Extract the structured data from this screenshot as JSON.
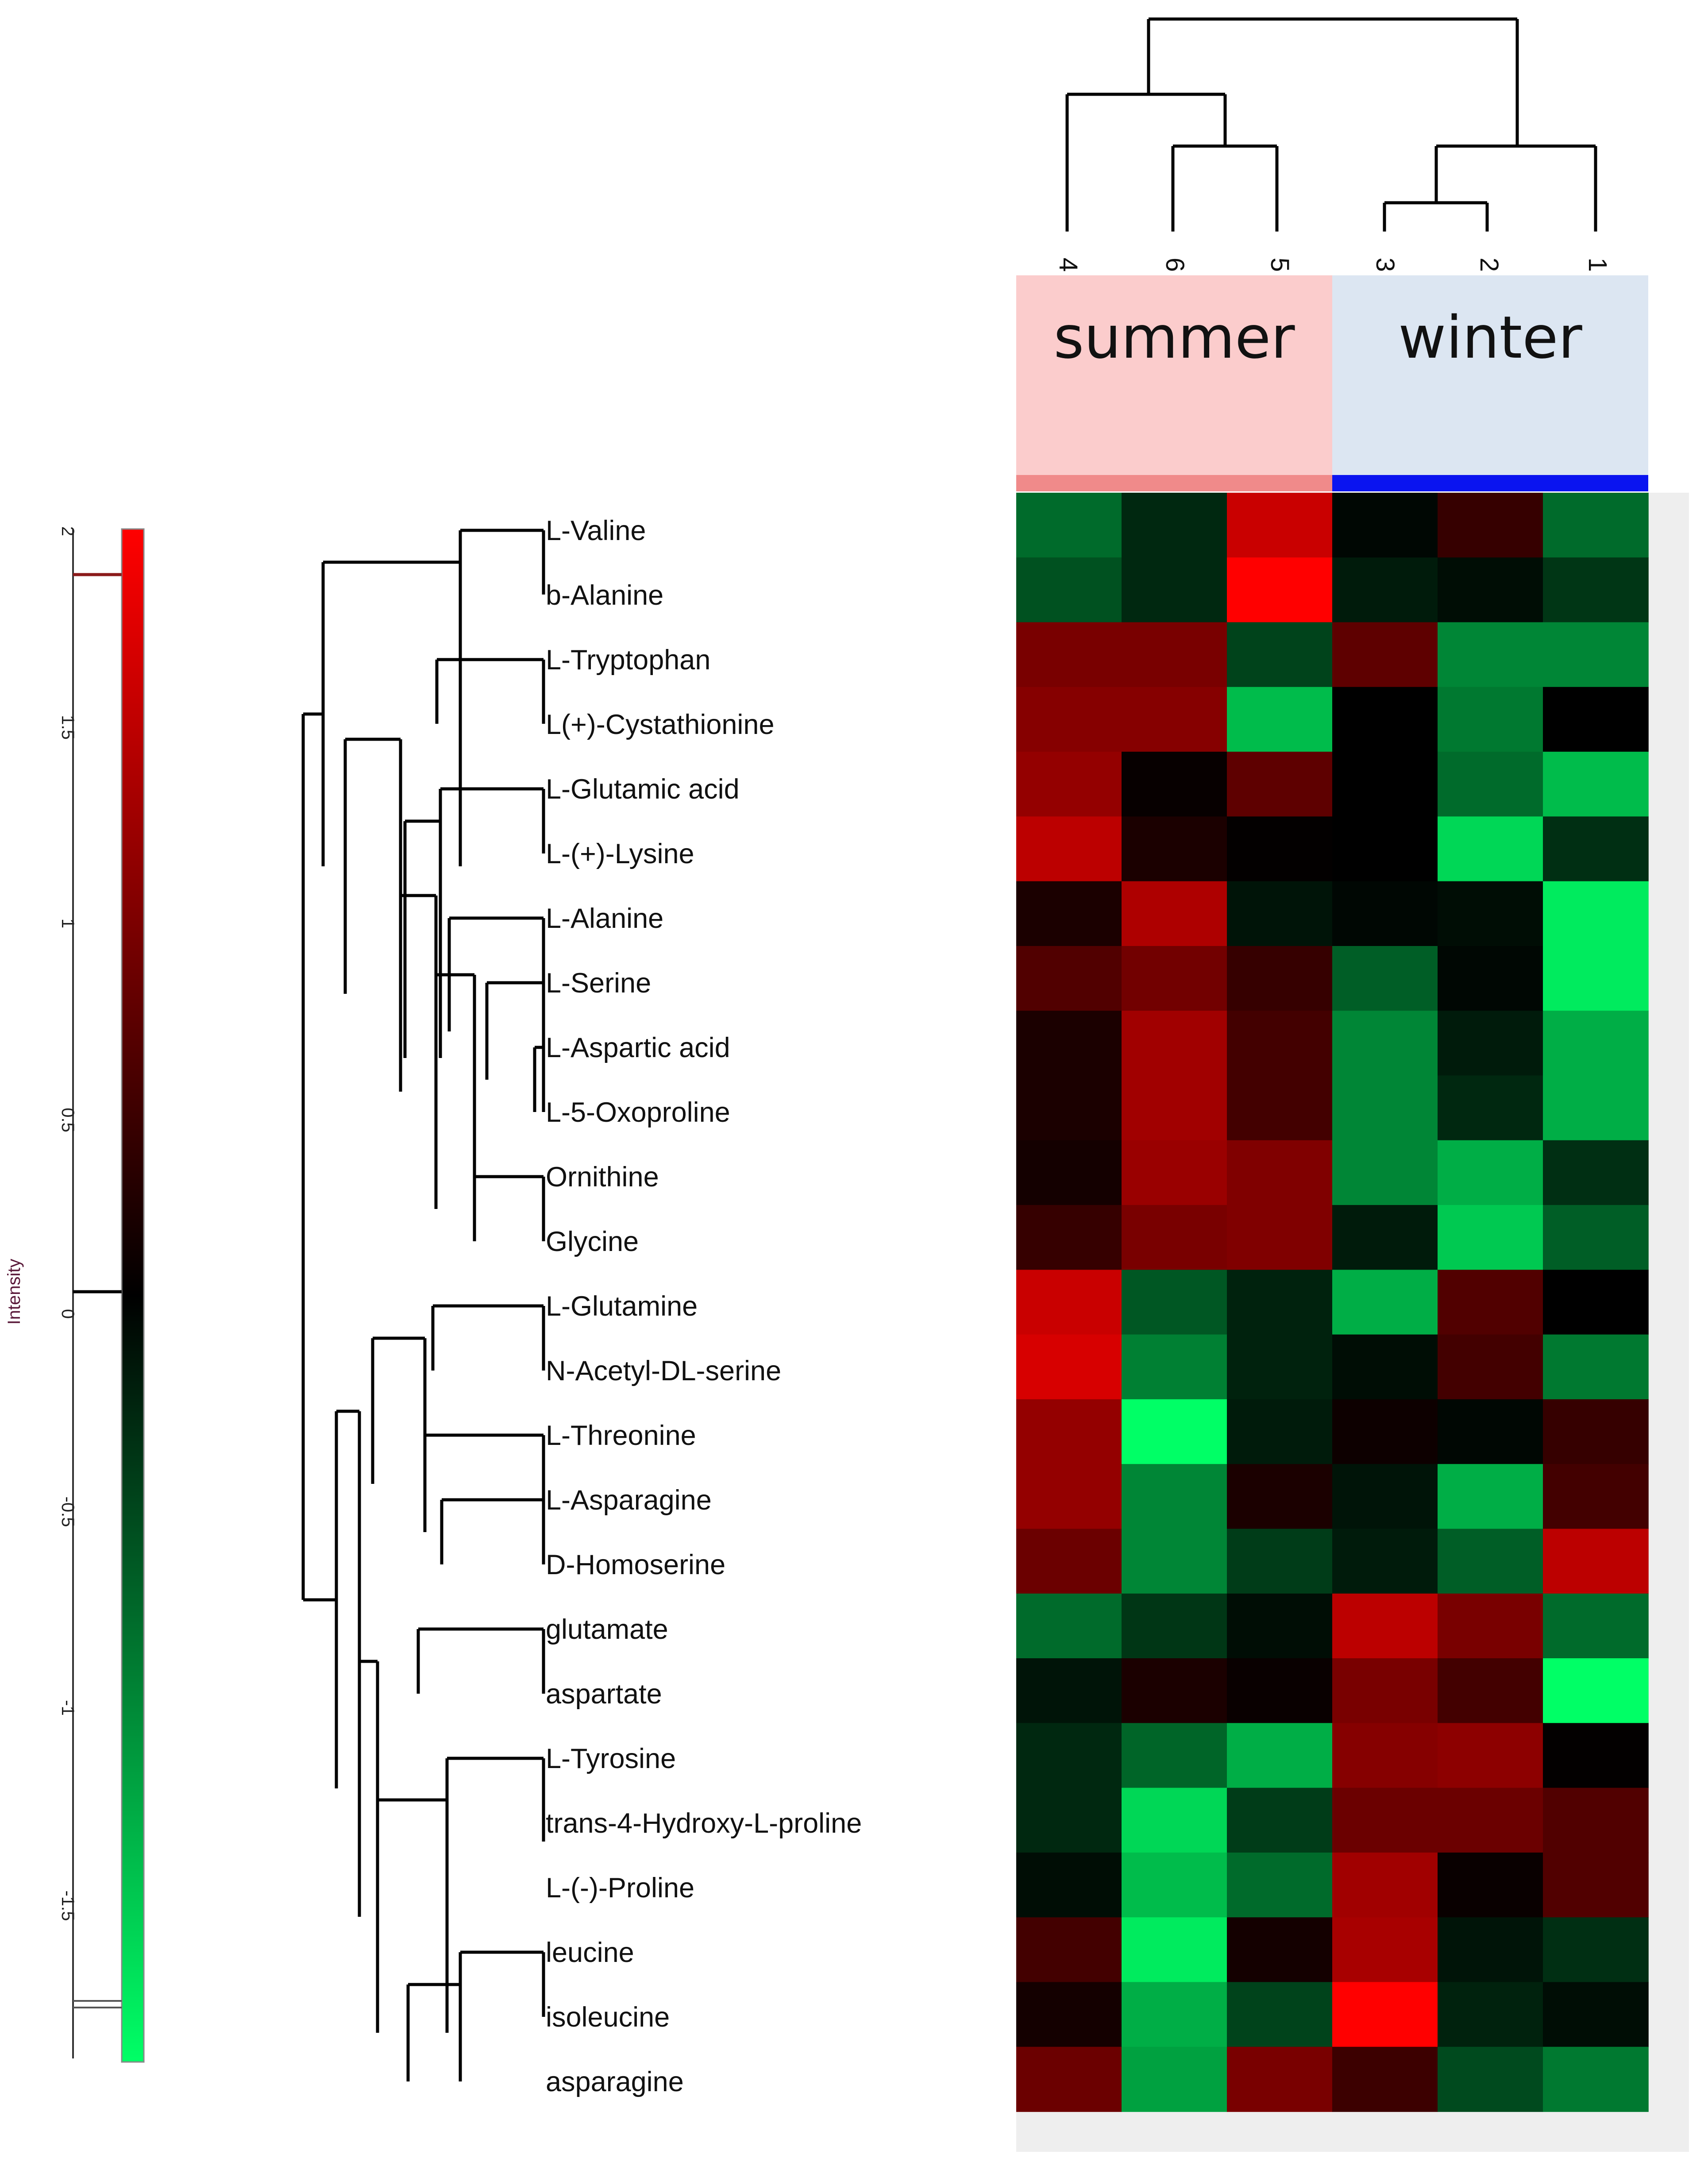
{
  "chart_data": {
    "type": "heatmap",
    "title": "",
    "rows": [
      "L-Valine",
      "b-Alanine",
      "L-Tryptophan",
      "L(+)-Cystathionine",
      "L-Glutamic acid",
      "L-(+)-Lysine",
      "L-Alanine",
      "L-Serine",
      "L-Aspartic acid",
      "L-5-Oxoproline",
      "Ornithine",
      "Glycine",
      "L-Glutamine",
      "N-Acetyl-DL-serine",
      "L-Threonine",
      "L-Asparagine",
      "D-Homoserine",
      "glutamate",
      "aspartate",
      "L-Tyrosine",
      "trans-4-Hydroxy-L-proline",
      "L-(-)-Proline",
      "leucine",
      "isoleucine",
      "asparagine"
    ],
    "columns": [
      "4",
      "6",
      "5",
      "3",
      "2",
      "1"
    ],
    "groups": [
      {
        "name": "summer",
        "columns": [
          "4",
          "6",
          "5"
        ],
        "color": "#fbcccc",
        "bar_color": "#f08a8a"
      },
      {
        "name": "winter",
        "columns": [
          "3",
          "2",
          "1"
        ],
        "color": "#dce6f2",
        "bar_color": "#0a14f0"
      }
    ],
    "values": [
      [
        -0.8,
        -0.3,
        1.5,
        -0.05,
        0.4,
        -0.8
      ],
      [
        -0.6,
        -0.3,
        1.9,
        -0.2,
        -0.1,
        -0.4
      ],
      [
        0.9,
        0.9,
        -0.5,
        0.7,
        -1.0,
        -1.0
      ],
      [
        1.0,
        1.0,
        -1.4,
        0.0,
        -0.9,
        0.0
      ],
      [
        1.1,
        0.05,
        0.7,
        0.0,
        -0.8,
        -1.4
      ],
      [
        1.4,
        0.2,
        0.02,
        0.0,
        -1.6,
        -0.35
      ],
      [
        0.2,
        1.3,
        -0.15,
        -0.05,
        -0.1,
        -1.75
      ],
      [
        0.6,
        0.85,
        0.4,
        -0.7,
        -0.05,
        -1.75
      ],
      [
        0.2,
        1.2,
        0.5,
        -1.0,
        -0.2,
        -1.3
      ],
      [
        0.2,
        1.2,
        0.5,
        -1.0,
        -0.3,
        -1.3
      ],
      [
        0.15,
        1.15,
        0.95,
        -1.0,
        -1.3,
        -0.35
      ],
      [
        0.4,
        0.9,
        0.95,
        -0.2,
        -1.5,
        -0.7
      ],
      [
        1.5,
        -0.65,
        -0.25,
        -1.3,
        0.6,
        0.0
      ],
      [
        1.6,
        -0.95,
        -0.25,
        -0.1,
        0.5,
        -0.9
      ],
      [
        1.1,
        -1.9,
        -0.2,
        0.1,
        -0.05,
        0.4
      ],
      [
        1.1,
        -1.0,
        0.2,
        -0.15,
        -1.3,
        0.5
      ],
      [
        0.8,
        -1.0,
        -0.45,
        -0.2,
        -0.7,
        1.4
      ],
      [
        -0.8,
        -0.4,
        -0.1,
        1.4,
        0.9,
        -0.8
      ],
      [
        -0.15,
        0.2,
        0.07,
        0.9,
        0.5,
        -1.9
      ],
      [
        -0.3,
        -0.75,
        -1.3,
        1.0,
        1.05,
        0.02
      ],
      [
        -0.3,
        -1.6,
        -0.45,
        0.8,
        0.8,
        0.6
      ],
      [
        -0.1,
        -1.4,
        -0.8,
        1.2,
        0.07,
        0.6
      ],
      [
        0.5,
        -1.75,
        0.15,
        1.25,
        -0.15,
        -0.35
      ],
      [
        0.15,
        -1.3,
        -0.5,
        1.9,
        -0.25,
        -0.1
      ],
      [
        0.8,
        -1.2,
        0.9,
        0.45,
        -0.55,
        -0.9
      ]
    ],
    "color_scale": {
      "min": -1.9,
      "mid": 0,
      "max": 1.9,
      "low_color": "#00ff66",
      "mid_color": "#000000",
      "high_color": "#ff0000",
      "ticks": [
        "2",
        "1.5",
        "1",
        "0.5",
        "0",
        "-0.5",
        "-1",
        "-1.5"
      ],
      "label": "Intensity"
    }
  }
}
